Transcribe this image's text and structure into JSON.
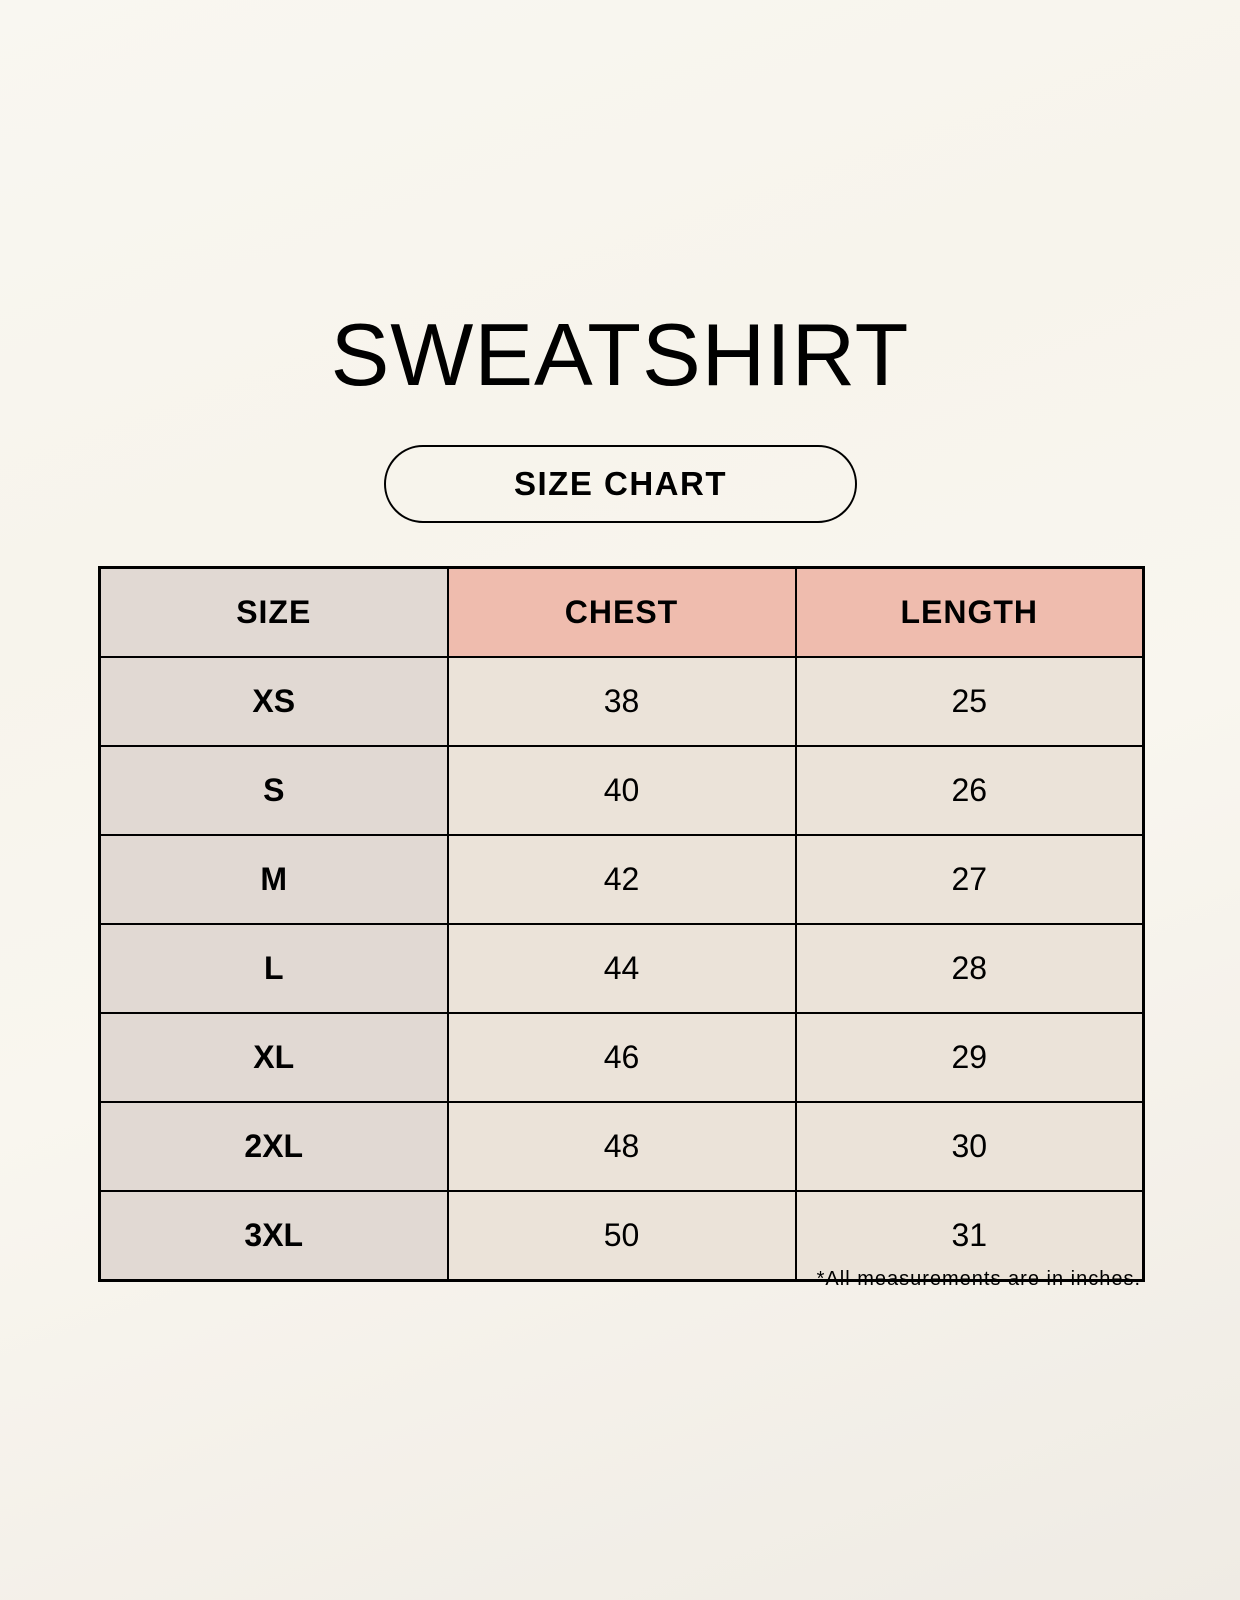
{
  "title": "SWEATSHIRT",
  "subtitle": "SIZE CHART",
  "colors": {
    "size_column": "#e1d9d3",
    "header_accent": "#efbcae",
    "cell": "#ebe3d9",
    "background": "#f8f5ee"
  },
  "table": {
    "headers": [
      "SIZE",
      "CHEST",
      "LENGTH"
    ],
    "rows": [
      [
        "XS",
        "38",
        "25"
      ],
      [
        "S",
        "40",
        "26"
      ],
      [
        "M",
        "42",
        "27"
      ],
      [
        "L",
        "44",
        "28"
      ],
      [
        "XL",
        "46",
        "29"
      ],
      [
        "2XL",
        "48",
        "30"
      ],
      [
        "3XL",
        "50",
        "31"
      ]
    ]
  },
  "footnote": "*All measurements are in inches."
}
